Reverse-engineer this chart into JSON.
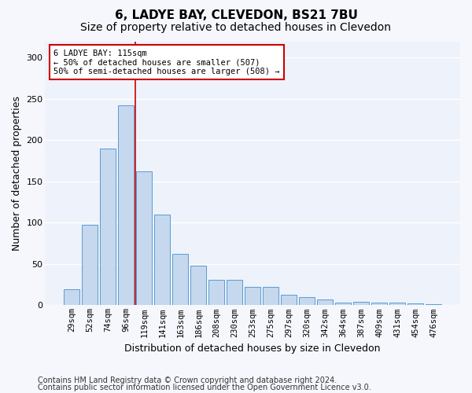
{
  "title1": "6, LADYE BAY, CLEVEDON, BS21 7BU",
  "title2": "Size of property relative to detached houses in Clevedon",
  "xlabel": "Distribution of detached houses by size in Clevedon",
  "ylabel": "Number of detached properties",
  "footer1": "Contains HM Land Registry data © Crown copyright and database right 2024.",
  "footer2": "Contains public sector information licensed under the Open Government Licence v3.0.",
  "categories": [
    "29sqm",
    "52sqm",
    "74sqm",
    "96sqm",
    "119sqm",
    "141sqm",
    "163sqm",
    "186sqm",
    "208sqm",
    "230sqm",
    "253sqm",
    "275sqm",
    "297sqm",
    "320sqm",
    "342sqm",
    "364sqm",
    "387sqm",
    "409sqm",
    "431sqm",
    "454sqm",
    "476sqm"
  ],
  "values": [
    19,
    98,
    190,
    242,
    162,
    110,
    62,
    48,
    31,
    31,
    22,
    22,
    13,
    10,
    7,
    3,
    4,
    3,
    3,
    2,
    1
  ],
  "bar_color": "#c5d8ed",
  "bar_edge_color": "#5b9bd5",
  "red_line_x": 3.5,
  "annotation_text": "6 LADYE BAY: 115sqm\n← 50% of detached houses are smaller (507)\n50% of semi-detached houses are larger (508) →",
  "annotation_box_color": "#ffffff",
  "annotation_box_edge_color": "#cc0000",
  "ylim": [
    0,
    320
  ],
  "yticks": [
    0,
    50,
    100,
    150,
    200,
    250,
    300
  ],
  "plot_bg_color": "#eef2fa",
  "grid_color": "#ffffff",
  "fig_bg_color": "#f5f7fc",
  "title1_fontsize": 11,
  "title2_fontsize": 10,
  "xlabel_fontsize": 9,
  "ylabel_fontsize": 9,
  "tick_fontsize": 8,
  "xtick_fontsize": 7.5,
  "footer_fontsize": 7
}
